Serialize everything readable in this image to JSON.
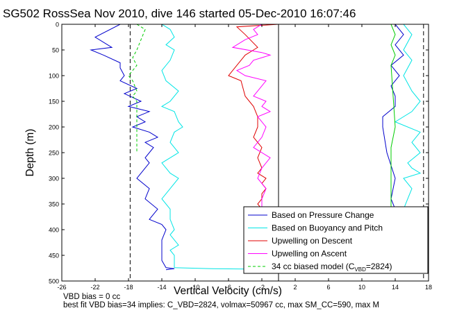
{
  "chart_data": {
    "type": "line",
    "title": "SG502 RossSea Nov 2010, dive 146 started 05-Dec-2010 16:07:46",
    "xlabel": "Vertical Velocity (cm/s)",
    "ylabel": "Depth (m)",
    "xlim": [
      -26,
      18
    ],
    "ylim": [
      500,
      0
    ],
    "y_reversed": true,
    "xticks": [
      -26,
      -22,
      -18,
      -14,
      -10,
      -6,
      -2,
      2,
      6,
      10,
      14,
      18
    ],
    "yticks": [
      0,
      50,
      100,
      150,
      200,
      250,
      300,
      350,
      400,
      450,
      500
    ],
    "grid": false,
    "legend_position": "bottom-right",
    "reference_lines": [
      {
        "x": -17.8,
        "style": "dashed",
        "color": "#000000"
      },
      {
        "x": 17.4,
        "style": "dashed",
        "color": "#000000"
      },
      {
        "x": 0,
        "style": "solid",
        "color": "#000000"
      }
    ],
    "series": [
      {
        "name": "Based on Pressure Change",
        "color": "#0000cc",
        "style": "solid",
        "x": [
          -19,
          -22,
          -20,
          -22.5,
          -21,
          -19,
          -19,
          -18.5,
          -19,
          -17,
          -18.5,
          -16.5,
          -18,
          -15.5,
          -17,
          -16,
          -17.5,
          -15.5,
          -14.5,
          -16,
          -15,
          -16,
          -15.5,
          -16,
          -17,
          -15.5,
          -16,
          -14.5,
          -15.5,
          -14,
          -13.5,
          -14,
          -14,
          -14,
          -13.5,
          -12.5,
          -13.5
        ],
        "y": [
          0,
          25,
          45,
          50,
          60,
          75,
          85,
          100,
          110,
          125,
          135,
          150,
          160,
          170,
          180,
          190,
          200,
          210,
          220,
          230,
          240,
          260,
          270,
          280,
          300,
          320,
          340,
          360,
          380,
          390,
          400,
          420,
          440,
          460,
          474,
          476,
          478
        ]
      },
      {
        "name": "Based on Buoyancy and Pitch",
        "color": "#00e5e5",
        "style": "solid",
        "x": [
          -14,
          -13,
          -12.5,
          -13.5,
          -12.5,
          -13,
          -14,
          -13.5,
          -12,
          -13,
          -14,
          -12.5,
          -12,
          -11.5,
          -12.5,
          -13,
          -12,
          -13,
          -14,
          -13,
          -12,
          -13,
          -14,
          -13,
          -13,
          -12.5,
          -13,
          -12.5,
          -12,
          -13,
          -12.5,
          -12.5,
          -12.5,
          -8,
          -2,
          3,
          6,
          16
        ],
        "y": [
          0,
          10,
          25,
          40,
          50,
          70,
          90,
          110,
          130,
          150,
          160,
          170,
          190,
          200,
          210,
          230,
          250,
          260,
          270,
          290,
          300,
          320,
          340,
          360,
          380,
          400,
          410,
          420,
          430,
          440,
          450,
          465,
          474,
          476,
          477,
          477,
          476,
          475
        ]
      },
      {
        "name": "Upwelling on Descent",
        "color": "#e00000",
        "style": "solid",
        "x": [
          0,
          -5,
          -4,
          -2.5,
          -3,
          -4,
          -4.5,
          -5,
          -5.5,
          -6,
          -4.5,
          -4,
          -3,
          -2.5,
          -2.5,
          -3,
          -2.5,
          -2,
          -2.5,
          -2,
          -2.5,
          -1.5,
          -2,
          -1.5,
          -2,
          -2,
          -2.5,
          -2,
          -1.5,
          -2
        ],
        "y": [
          0,
          5,
          20,
          45,
          50,
          60,
          70,
          80,
          90,
          100,
          110,
          140,
          160,
          180,
          200,
          220,
          230,
          240,
          260,
          280,
          290,
          300,
          310,
          320,
          330,
          340,
          350,
          360,
          365,
          365
        ]
      },
      {
        "name": "Upwelling on Ascent",
        "color": "#ff00ff",
        "style": "solid",
        "x": [
          -2,
          -3,
          -2.5,
          -4,
          -5.5,
          -2,
          -1,
          -3,
          -3.5,
          -5,
          -4,
          -1.5,
          -2,
          -3,
          -1.5,
          -2,
          -1,
          -2.5,
          -1.5,
          -2,
          -3,
          -1,
          -2,
          -2.5,
          -1.5,
          -2,
          -2,
          -2
        ],
        "y": [
          0,
          10,
          20,
          30,
          45,
          55,
          60,
          70,
          80,
          90,
          100,
          110,
          120,
          140,
          150,
          160,
          170,
          180,
          200,
          220,
          240,
          260,
          280,
          300,
          320,
          340,
          350,
          365
        ]
      },
      {
        "name": "34 cc biased model (C_VBD=2824)",
        "color": "#00cc00",
        "style": "dashed",
        "x": [
          -17,
          -16,
          -16.5,
          -17,
          -17.5,
          -17,
          -17.5,
          -18,
          -17.5,
          -17,
          -17.5,
          -17,
          -17,
          -17
        ],
        "y": [
          0,
          10,
          30,
          50,
          65,
          80,
          90,
          100,
          110,
          130,
          140,
          150,
          190,
          250
        ]
      }
    ],
    "ascent_series": [
      {
        "color": "#00e5e5",
        "x": [
          15,
          16,
          15,
          16,
          15,
          16,
          17,
          16,
          14,
          17,
          16,
          17,
          15.5,
          16,
          17,
          15,
          16,
          15.5,
          15
        ],
        "y": [
          0,
          20,
          50,
          70,
          100,
          130,
          150,
          170,
          190,
          210,
          230,
          250,
          270,
          280,
          290,
          300,
          320,
          340,
          360
        ]
      },
      {
        "color": "#0000cc",
        "x": [
          14,
          15,
          14,
          15,
          13.5,
          14.5,
          13.5,
          14,
          14,
          12.5,
          12.5,
          13,
          14,
          13.5,
          14
        ],
        "y": [
          0,
          20,
          40,
          60,
          80,
          100,
          120,
          140,
          160,
          180,
          200,
          250,
          300,
          340,
          360
        ]
      },
      {
        "color": "#00cc00",
        "x": [
          13.5,
          14,
          13.5,
          14,
          13.5,
          14,
          13.5,
          13.5,
          13.5,
          13.5
        ],
        "y": [
          0,
          20,
          40,
          60,
          80,
          200,
          240,
          280,
          320,
          360
        ]
      }
    ],
    "legend": [
      {
        "label": "Based on Pressure Change",
        "color": "#0000cc",
        "style": "solid"
      },
      {
        "label": "Based on Buoyancy and Pitch",
        "color": "#00e5e5",
        "style": "solid"
      },
      {
        "label": "Upwelling on Descent",
        "color": "#e00000",
        "style": "solid"
      },
      {
        "label": "Upwelling on Ascent",
        "color": "#ff00ff",
        "style": "solid"
      },
      {
        "label": "34 cc biased model (C",
        "sub": "VBD",
        "tail": "=2824)",
        "color": "#00cc00",
        "style": "dashed"
      }
    ]
  },
  "footer": {
    "line1": "VBD bias = 0 cc",
    "line2": "best fit VBD bias=34 implies: C_VBD=2824, volmax=50967 cc, max SM_CC=590, max M"
  }
}
